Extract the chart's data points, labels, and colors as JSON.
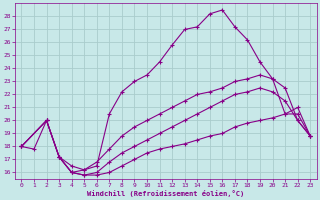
{
  "xlabel": "Windchill (Refroidissement éolien,°C)",
  "xlim": [
    -0.5,
    23.5
  ],
  "ylim": [
    15.5,
    29.0
  ],
  "yticks": [
    16,
    17,
    18,
    19,
    20,
    21,
    22,
    23,
    24,
    25,
    26,
    27,
    28
  ],
  "xticks": [
    0,
    1,
    2,
    3,
    4,
    5,
    6,
    7,
    8,
    9,
    10,
    11,
    12,
    13,
    14,
    15,
    16,
    17,
    18,
    19,
    20,
    21,
    22,
    23
  ],
  "bg_color": "#c8e8e8",
  "grid_color": "#aacccc",
  "line_color": "#880088",
  "lines": [
    {
      "x": [
        0,
        1,
        2,
        3,
        4,
        5,
        6,
        7,
        8,
        9,
        10,
        11,
        12,
        13,
        14,
        15,
        16,
        17,
        18,
        19,
        20,
        21,
        22,
        23
      ],
      "y": [
        18,
        17.8,
        20,
        17.2,
        16.0,
        16.2,
        16.5,
        20.5,
        22.2,
        23.0,
        23.5,
        24.5,
        25.8,
        27.0,
        27.2,
        28.2,
        28.5,
        27.2,
        26.2,
        24.5,
        23.2,
        20.5,
        20.5,
        18.8
      ]
    },
    {
      "x": [
        0,
        2,
        3,
        4,
        5,
        6,
        7,
        8,
        9,
        10,
        11,
        12,
        13,
        14,
        15,
        16,
        17,
        18,
        19,
        20,
        21,
        22,
        23
      ],
      "y": [
        18,
        20,
        17.2,
        16.5,
        16.2,
        16.8,
        17.8,
        18.8,
        19.5,
        20.0,
        20.5,
        21.0,
        21.5,
        22.0,
        22.2,
        22.5,
        23.0,
        23.2,
        23.5,
        23.2,
        22.5,
        20.0,
        18.8
      ]
    },
    {
      "x": [
        0,
        2,
        3,
        4,
        5,
        6,
        7,
        8,
        9,
        10,
        11,
        12,
        13,
        14,
        15,
        16,
        17,
        18,
        19,
        20,
        21,
        22,
        23
      ],
      "y": [
        18,
        20,
        17.2,
        16.0,
        15.8,
        16.0,
        16.8,
        17.5,
        18.0,
        18.5,
        19.0,
        19.5,
        20.0,
        20.5,
        21.0,
        21.5,
        22.0,
        22.2,
        22.5,
        22.2,
        21.5,
        20.0,
        18.8
      ]
    },
    {
      "x": [
        0,
        2,
        3,
        4,
        5,
        6,
        7,
        8,
        9,
        10,
        11,
        12,
        13,
        14,
        15,
        16,
        17,
        18,
        19,
        20,
        21,
        22,
        23
      ],
      "y": [
        18,
        20,
        17.2,
        16.0,
        15.8,
        15.8,
        16.0,
        16.5,
        17.0,
        17.5,
        17.8,
        18.0,
        18.2,
        18.5,
        18.8,
        19.0,
        19.5,
        19.8,
        20.0,
        20.2,
        20.5,
        21.0,
        18.8
      ]
    }
  ]
}
